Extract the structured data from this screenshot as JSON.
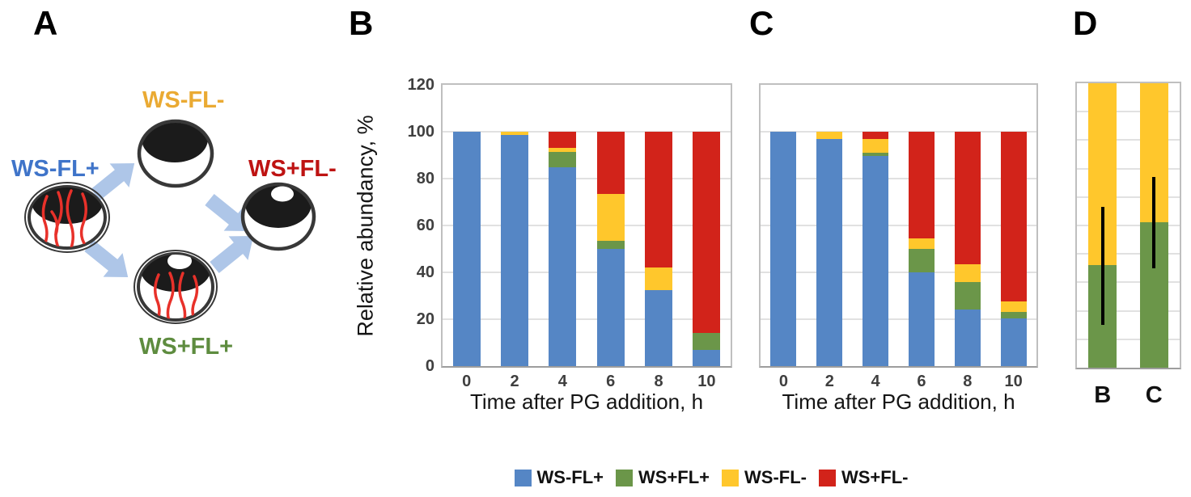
{
  "figure": {
    "panel_labels": {
      "a": "A",
      "b": "B",
      "c": "C",
      "d": "D"
    }
  },
  "panels": {
    "a": {
      "nodes": {
        "ws_fl_plus": {
          "label": "WS-FL+",
          "color": "#3F74C9"
        },
        "ws_fl_minus": {
          "label": "WS-FL-",
          "color": "#EAAA33"
        },
        "ws_plus_fl_plus": {
          "label": "WS+FL+",
          "color": "#5E8C3F"
        },
        "ws_plus_fl_minus": {
          "label": "WS+FL-",
          "color": "#BE1312"
        }
      },
      "arrow_color": "#AEC6E8",
      "flagella_color": "#E8312A"
    }
  },
  "chart_data": [
    {
      "id": "panel-b",
      "type": "bar",
      "stacked": true,
      "categories": [
        "0",
        "2",
        "4",
        "6",
        "8",
        "10"
      ],
      "series": [
        {
          "name": "WS-FL+",
          "color": "#5586C5",
          "values": [
            100,
            98.5,
            85,
            50,
            32.5,
            7
          ]
        },
        {
          "name": "WS+FL+",
          "color": "#6B9649",
          "values": [
            0,
            0,
            6.5,
            3.5,
            0,
            7
          ]
        },
        {
          "name": "WS-FL-",
          "color": "#FFC72C",
          "values": [
            0,
            1.5,
            1.5,
            20,
            9.5,
            0
          ]
        },
        {
          "name": "WS+FL-",
          "color": "#D2231A",
          "values": [
            0,
            0,
            7,
            26.5,
            58,
            86
          ]
        }
      ],
      "xlabel": "Time after PG addition, h",
      "ylabel": "Relative abundancy, %",
      "ylim": [
        0,
        120
      ],
      "ytick_step": 20,
      "grid": true,
      "show_yticks": true,
      "show_xticks": true,
      "legend_position": "bottom"
    },
    {
      "id": "panel-c",
      "type": "bar",
      "stacked": true,
      "categories": [
        "0",
        "2",
        "4",
        "6",
        "8",
        "10"
      ],
      "series": [
        {
          "name": "WS-FL+",
          "color": "#5586C5",
          "values": [
            100,
            97,
            89.5,
            40,
            24,
            20.5
          ]
        },
        {
          "name": "WS+FL+",
          "color": "#6B9649",
          "values": [
            0,
            0,
            1.5,
            10,
            12,
            2.5
          ]
        },
        {
          "name": "WS-FL-",
          "color": "#FFC72C",
          "values": [
            0,
            3,
            6,
            4.5,
            7.5,
            4.5
          ]
        },
        {
          "name": "WS+FL-",
          "color": "#D2231A",
          "values": [
            0,
            0,
            3,
            45.5,
            56.5,
            72.5
          ]
        }
      ],
      "xlabel": "Time after PG addition, h",
      "ylim": [
        0,
        120
      ],
      "ytick_step": 20,
      "grid": true,
      "show_yticks": false,
      "show_xticks": true
    },
    {
      "id": "panel-d",
      "type": "bar",
      "stacked": true,
      "categories": [
        "B",
        "C"
      ],
      "series": [
        {
          "name": "WS+FL+",
          "color": "#6B9649",
          "values": [
            36,
            51
          ]
        },
        {
          "name": "WS-FL-",
          "color": "#FFC72C",
          "values": [
            64,
            49
          ]
        }
      ],
      "error_bars": [
        {
          "low": 15,
          "high": 56.5
        },
        {
          "low": 35,
          "high": 67
        }
      ],
      "ylim": [
        0,
        100
      ],
      "ytick_step": 10,
      "grid": true,
      "show_yticks": false,
      "show_xticks": true
    }
  ],
  "legend": {
    "items": [
      {
        "label": "WS-FL+",
        "color": "#5586C5"
      },
      {
        "label": "WS+FL+",
        "color": "#6B9649"
      },
      {
        "label": "WS-FL-",
        "color": "#FFC72C"
      },
      {
        "label": "WS+FL-",
        "color": "#D2231A"
      }
    ]
  }
}
